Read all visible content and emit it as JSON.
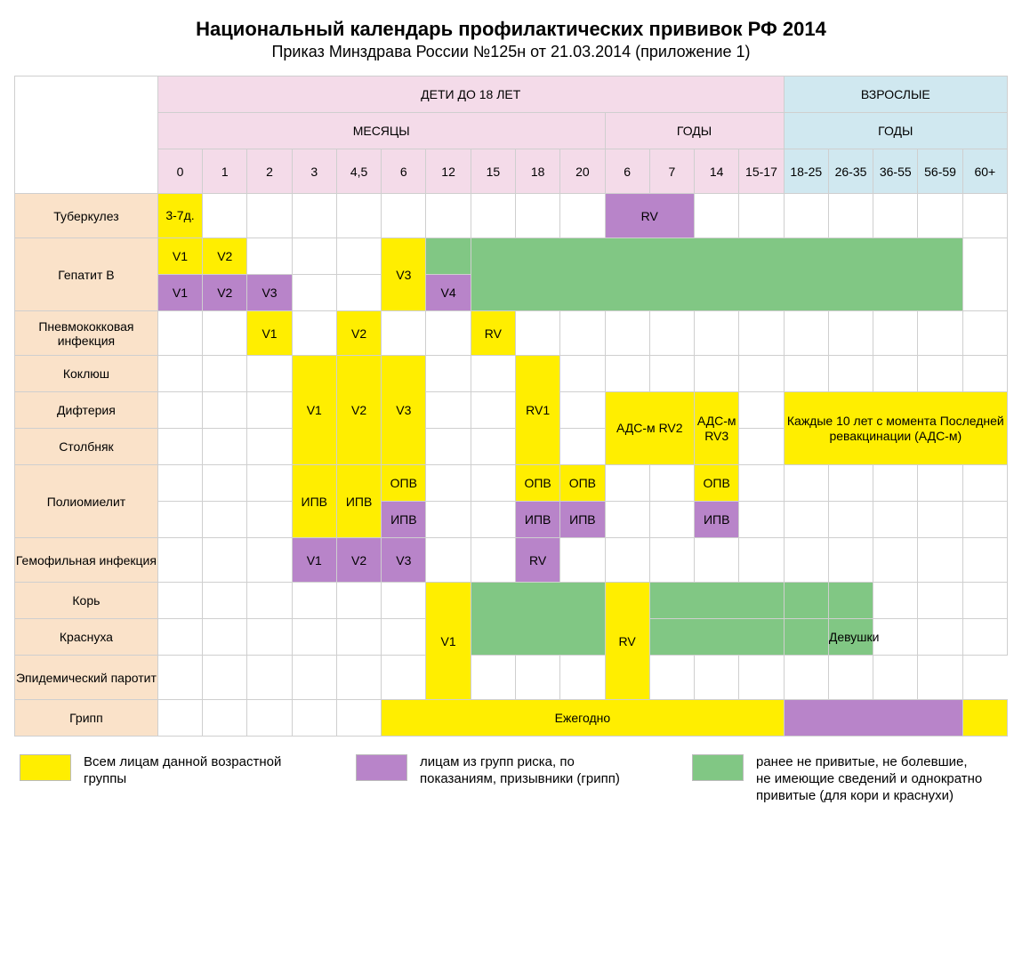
{
  "title": "Национальный календарь профилактических прививок РФ 2014",
  "subtitle": "Приказ Минздрава России №125н от 21.03.2014 (приложение 1)",
  "header": {
    "children_group": "ДЕТИ ДО 18 ЛЕТ",
    "adults_group": "ВЗРОСЛЫЕ",
    "months_label": "МЕСЯЦЫ",
    "years_label": "ГОДЫ",
    "children_header_color": "#f4dbe9",
    "adults_header_color": "#d0e8f0",
    "month_cols": [
      "0",
      "1",
      "2",
      "3",
      "4,5",
      "6",
      "12",
      "15",
      "18",
      "20"
    ],
    "child_year_cols": [
      "6",
      "7",
      "14",
      "15-17"
    ],
    "adult_year_cols": [
      "18-25",
      "26-35",
      "36-55",
      "56-59",
      "60+"
    ]
  },
  "colors": {
    "all_persons": "#ffee00",
    "risk_group": "#b884c9",
    "unvaccinated": "#81c784",
    "row_label_bg": "#fae2c9",
    "border": "#cfcfcf",
    "background": "#ffffff"
  },
  "legend": {
    "all": "Всем лицам данной возрастной группы",
    "risk": "лицам из групп риска, по показаниям, призывники (грипп)",
    "unvac": "ранее не привитые, не болевшие, не имеющие сведений и однократно привитые (для кори и краснухи)"
  },
  "rows": {
    "tb": "Туберкулез",
    "hepb": "Гепатит В",
    "pneumo": "Пневмококковая инфекция",
    "pertussis": "Коклюш",
    "diphtheria": "Дифтерия",
    "tetanus": "Столбняк",
    "polio": "Полиомиелит",
    "hib": "Гемофильная инфекция",
    "measles": "Корь",
    "rubella": "Краснуха",
    "mumps": "Эпидемический паротит",
    "flu": "Грипп"
  },
  "cells": {
    "tb_0": "3-7д.",
    "tb_rv": "RV",
    "hepb_v1": "V1",
    "hepb_v2": "V2",
    "hepb_v3": "V3",
    "hepb_v4": "V4",
    "pneumo_v1": "V1",
    "pneumo_v2": "V2",
    "pneumo_rv": "RV",
    "dtp_v1": "V1",
    "dtp_v2": "V2",
    "dtp_v3": "V3",
    "dtp_rv1": "RV1",
    "dtp_rv2": "АДС-м RV2",
    "dtp_rv3": "АДС-м RV3",
    "dtp_adult": "Каждые 10 лет с момента Последней ревакцинации (АДС-м)",
    "opv": "ОПВ",
    "ipv": "ИПВ",
    "hib_v1": "V1",
    "hib_v2": "V2",
    "hib_v3": "V3",
    "hib_rv": "RV",
    "mmr_v1": "V1",
    "mmr_rv": "RV",
    "rubella_girls": "Девушки",
    "flu_annual": "Ежегодно"
  }
}
